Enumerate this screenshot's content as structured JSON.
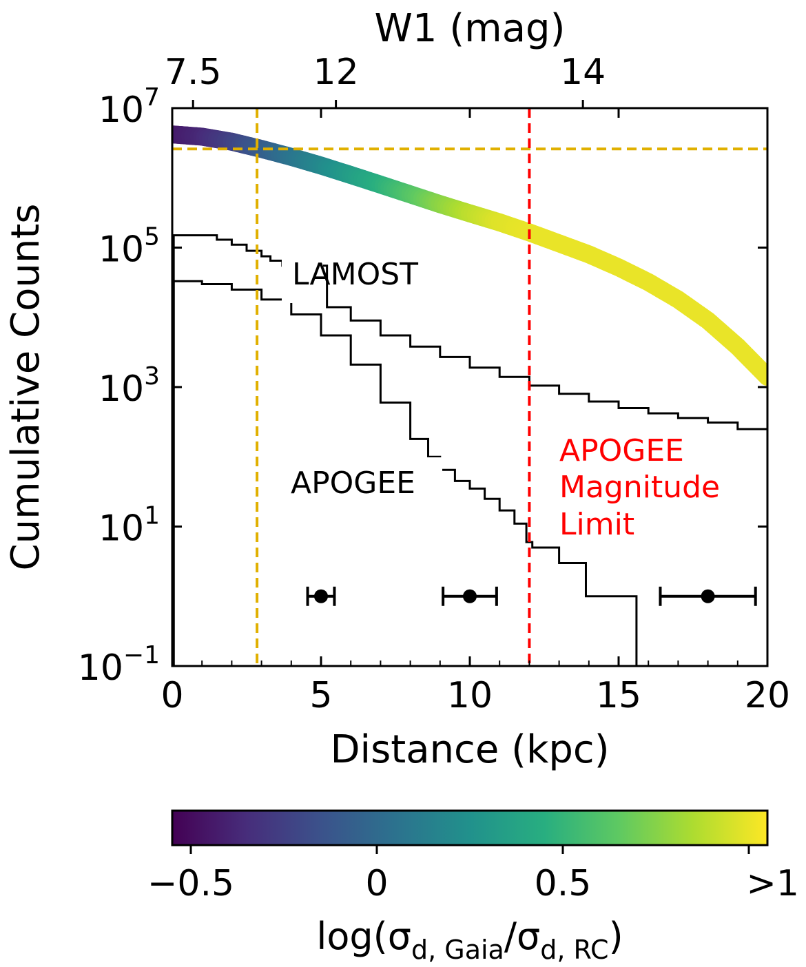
{
  "chart_data": {
    "type": "line",
    "x_axis": {
      "label": "Distance (kpc)",
      "range": [
        0,
        20
      ],
      "ticks": [
        0,
        5,
        10,
        15,
        20
      ],
      "tick_labels": [
        "0",
        "5",
        "10",
        "15",
        "20"
      ]
    },
    "top_axis": {
      "label": "W1 (mag)",
      "tick_positions_kpc": [
        0.7,
        5.5,
        13.8
      ],
      "tick_labels": [
        "7.5",
        "12",
        "14"
      ]
    },
    "y_axis": {
      "label": "Cumulative Counts",
      "scale": "log",
      "range": [
        0.1,
        10000000
      ],
      "ticks": [
        0.1,
        10,
        1000,
        100000,
        10000000
      ],
      "tick_labels": [
        {
          "base": "10",
          "exp": "−1"
        },
        {
          "base": "10",
          "exp": "1"
        },
        {
          "base": "10",
          "exp": "3"
        },
        {
          "base": "10",
          "exp": "5"
        },
        {
          "base": "10",
          "exp": "7"
        }
      ]
    },
    "colorbar": {
      "label_main": "log(σ",
      "label_sub1": "d, Gaia",
      "label_mid": "/σ",
      "label_sub2": "d, RC",
      "label_end": ")",
      "range": [
        -0.55,
        1.05
      ],
      "ticks": [
        -0.5,
        0,
        0.5,
        1
      ],
      "tick_labels": [
        "−0.5",
        "0",
        "0.5",
        ">1"
      ],
      "colors": [
        "#440154",
        "#472d7b",
        "#3b528b",
        "#2c728e",
        "#21918c",
        "#28ae80",
        "#5ec962",
        "#addc30",
        "#fde725"
      ]
    },
    "series": [
      {
        "kind": "colored_band",
        "x": [
          0,
          1,
          2,
          3,
          4,
          5,
          6,
          7,
          8,
          9,
          10,
          11,
          12,
          13,
          14,
          15,
          16,
          17,
          18,
          19,
          20
        ],
        "y": [
          4200000,
          3900000,
          3300000,
          2600000,
          2000000,
          1500000,
          1100000,
          800000,
          580000,
          420000,
          310000,
          230000,
          165000,
          115000,
          80000,
          52000,
          32000,
          18000,
          9000,
          3800,
          1400
        ],
        "color_value": [
          -0.45,
          -0.38,
          -0.25,
          -0.1,
          0.05,
          0.18,
          0.32,
          0.45,
          0.6,
          0.75,
          0.88,
          0.97,
          1.0,
          1.0,
          1.0,
          1.0,
          1.0,
          1.0,
          1.0,
          1.0,
          1.0
        ]
      },
      {
        "name": "LAMOST",
        "kind": "step",
        "color": "#000000",
        "x": [
          0.05,
          0.2,
          1,
          1.5,
          2.0,
          2.5,
          3.0,
          3.3,
          3.7,
          5.2,
          6,
          7,
          8,
          9,
          10,
          11,
          12,
          13,
          14,
          15,
          16,
          17,
          18,
          19,
          20
        ],
        "y": [
          150000,
          150000,
          150000,
          130000,
          110000,
          90000,
          75000,
          65000,
          55000,
          14000,
          9000,
          5500,
          3800,
          2700,
          1900,
          1400,
          1050,
          800,
          620,
          500,
          420,
          360,
          310,
          250,
          180
        ]
      },
      {
        "name": "APOGEE",
        "kind": "step",
        "color": "#000000",
        "x": [
          0.05,
          0.2,
          1,
          2,
          3,
          4,
          5,
          6,
          7,
          8,
          8.6,
          9,
          9.5,
          10,
          10.5,
          11,
          11.5,
          11.9,
          12.1,
          13,
          13.9,
          15.5,
          15.6
        ],
        "y": [
          33000,
          33000,
          30000,
          25000,
          18000,
          11000,
          5500,
          2100,
          600,
          180,
          100,
          65,
          45,
          35,
          25,
          17,
          11,
          6,
          5,
          3,
          1,
          1,
          0.1
        ]
      }
    ],
    "reference_lines": [
      {
        "orientation": "vertical",
        "x": 2.85,
        "color": "#e0b000",
        "style": "dashed"
      },
      {
        "orientation": "horizontal",
        "y": 2600000,
        "color": "#e0b000",
        "style": "dashed"
      },
      {
        "orientation": "vertical",
        "x": 12.0,
        "color": "#ff0000",
        "style": "dashed"
      }
    ],
    "error_bars": [
      {
        "x": 5.0,
        "y": 1,
        "xerr": 0.45
      },
      {
        "x": 10.0,
        "y": 1,
        "xerr": 0.9
      },
      {
        "x": 18.0,
        "y": 1,
        "xerr": 1.6
      }
    ],
    "annotations": {
      "lamost": "LAMOST",
      "apogee": "APOGEE",
      "apogee_limit_lines": [
        "APOGEE",
        "Magnitude",
        "Limit"
      ]
    },
    "grid": false,
    "legend": "none"
  }
}
